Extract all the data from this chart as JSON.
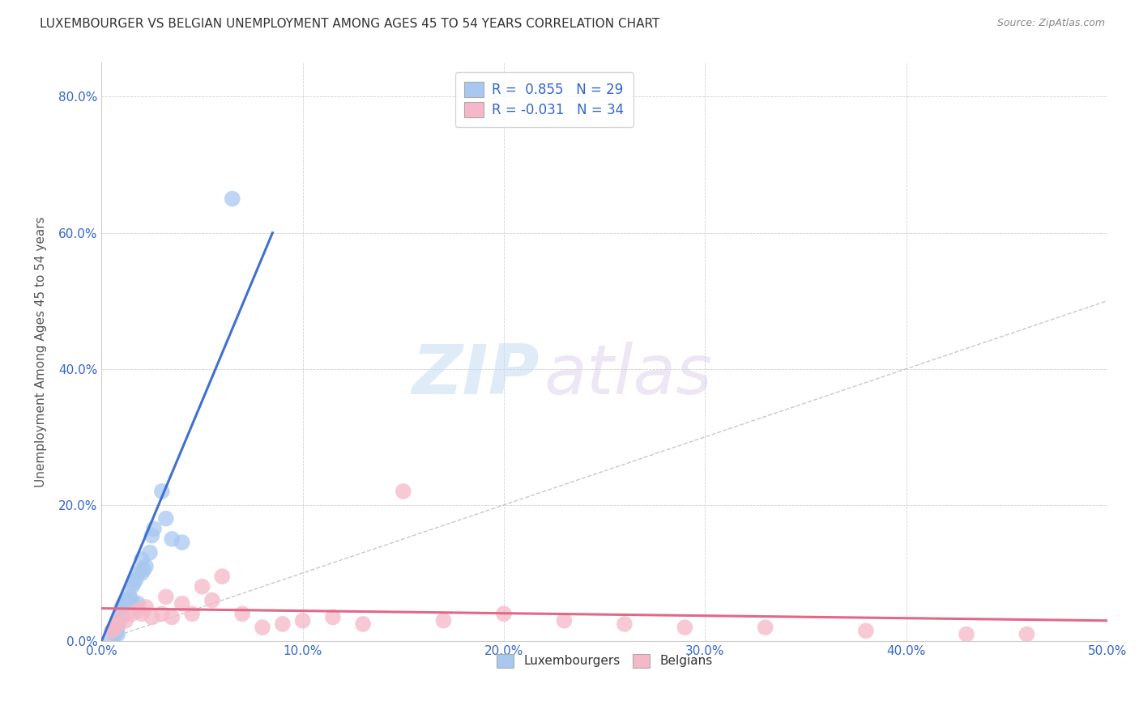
{
  "title": "LUXEMBOURGER VS BELGIAN UNEMPLOYMENT AMONG AGES 45 TO 54 YEARS CORRELATION CHART",
  "source": "Source: ZipAtlas.com",
  "ylabel": "Unemployment Among Ages 45 to 54 years",
  "xlim": [
    0.0,
    0.5
  ],
  "ylim": [
    0.0,
    0.85
  ],
  "xticks": [
    0.0,
    0.1,
    0.2,
    0.3,
    0.4,
    0.5
  ],
  "yticks": [
    0.0,
    0.2,
    0.4,
    0.6,
    0.8
  ],
  "xtick_labels": [
    "0.0%",
    "10.0%",
    "20.0%",
    "30.0%",
    "40.0%",
    "50.0%"
  ],
  "ytick_labels": [
    "0.0%",
    "20.0%",
    "40.0%",
    "60.0%",
    "80.0%"
  ],
  "legend_lux": "Luxembourgers",
  "legend_bel": "Belgians",
  "R_lux": 0.855,
  "N_lux": 29,
  "R_bel": -0.031,
  "N_bel": 34,
  "color_lux": "#A8C8F0",
  "color_bel": "#F5B8C8",
  "line_lux": "#4070D0",
  "line_bel": "#E06888",
  "line_diag": "#BBBBBB",
  "watermark_zip": "ZIP",
  "watermark_atlas": "atlas",
  "lux_x": [
    0.005,
    0.007,
    0.008,
    0.008,
    0.009,
    0.01,
    0.01,
    0.011,
    0.012,
    0.013,
    0.014,
    0.015,
    0.015,
    0.016,
    0.017,
    0.018,
    0.018,
    0.02,
    0.02,
    0.021,
    0.022,
    0.024,
    0.025,
    0.026,
    0.03,
    0.032,
    0.035,
    0.04,
    0.065
  ],
  "lux_y": [
    0.005,
    0.01,
    0.01,
    0.02,
    0.03,
    0.04,
    0.05,
    0.055,
    0.06,
    0.055,
    0.065,
    0.06,
    0.08,
    0.085,
    0.09,
    0.055,
    0.1,
    0.12,
    0.1,
    0.105,
    0.11,
    0.13,
    0.155,
    0.165,
    0.22,
    0.18,
    0.15,
    0.145,
    0.65
  ],
  "bel_x": [
    0.005,
    0.007,
    0.008,
    0.01,
    0.012,
    0.015,
    0.018,
    0.02,
    0.022,
    0.025,
    0.03,
    0.032,
    0.035,
    0.04,
    0.045,
    0.05,
    0.055,
    0.06,
    0.07,
    0.08,
    0.09,
    0.1,
    0.115,
    0.13,
    0.15,
    0.17,
    0.2,
    0.23,
    0.26,
    0.29,
    0.33,
    0.38,
    0.43,
    0.46
  ],
  "bel_y": [
    0.015,
    0.02,
    0.025,
    0.035,
    0.03,
    0.04,
    0.045,
    0.04,
    0.05,
    0.035,
    0.04,
    0.065,
    0.035,
    0.055,
    0.04,
    0.08,
    0.06,
    0.095,
    0.04,
    0.02,
    0.025,
    0.03,
    0.035,
    0.025,
    0.22,
    0.03,
    0.04,
    0.03,
    0.025,
    0.02,
    0.02,
    0.015,
    0.01,
    0.01
  ],
  "lux_trendline_x": [
    0.0,
    0.085
  ],
  "lux_trendline_y": [
    0.0,
    0.6
  ],
  "bel_trendline_x": [
    0.0,
    0.5
  ],
  "bel_trendline_y": [
    0.048,
    0.03
  ]
}
